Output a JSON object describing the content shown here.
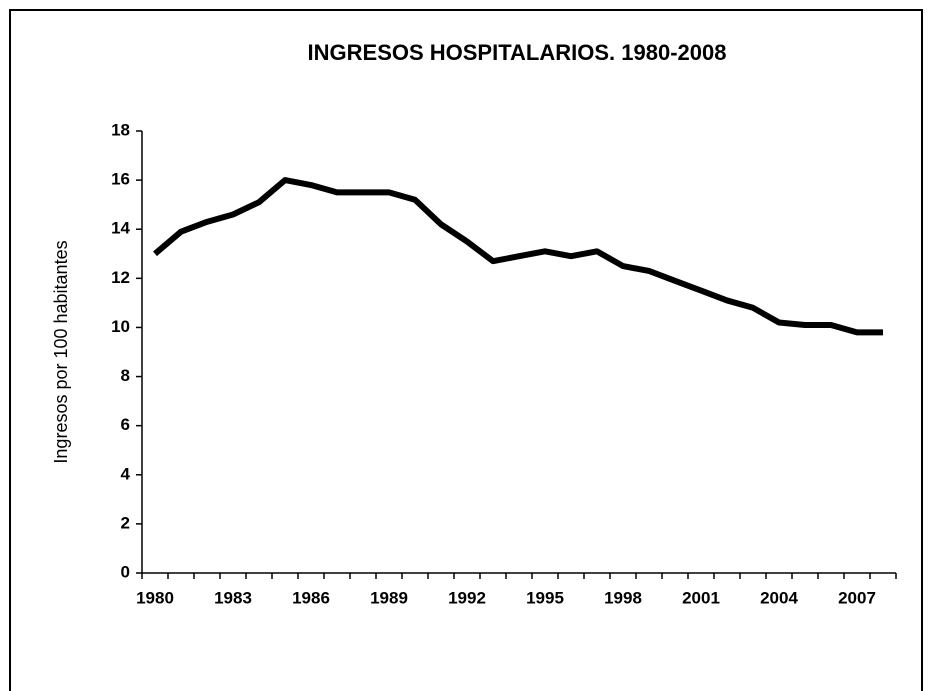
{
  "chart_data": {
    "type": "line",
    "title": "INGRESOS HOSPITALARIOS. 1980-2008",
    "ylabel": "Ingresos por 100 habitantes",
    "categories": [
      "1980",
      null,
      null,
      "1983",
      null,
      null,
      "1986",
      null,
      null,
      "1989",
      null,
      null,
      "1992",
      null,
      null,
      "1995",
      null,
      null,
      "1998",
      null,
      null,
      "2001",
      null,
      null,
      "2004",
      null,
      null,
      "2007",
      null
    ],
    "series": [
      {
        "name": "Ingresos",
        "color": "#000000",
        "values": [
          13.0,
          13.9,
          14.3,
          14.6,
          15.1,
          16.0,
          15.8,
          15.5,
          15.5,
          15.5,
          15.2,
          14.2,
          13.5,
          12.7,
          12.9,
          13.1,
          12.9,
          13.1,
          12.5,
          12.3,
          11.9,
          11.5,
          11.1,
          10.8,
          10.2,
          10.1,
          10.1,
          9.8,
          9.8
        ]
      }
    ],
    "ylim": [
      0,
      18
    ],
    "yticks": [
      0,
      2,
      4,
      6,
      8,
      10,
      12,
      14,
      16,
      18
    ],
    "grid": false
  }
}
